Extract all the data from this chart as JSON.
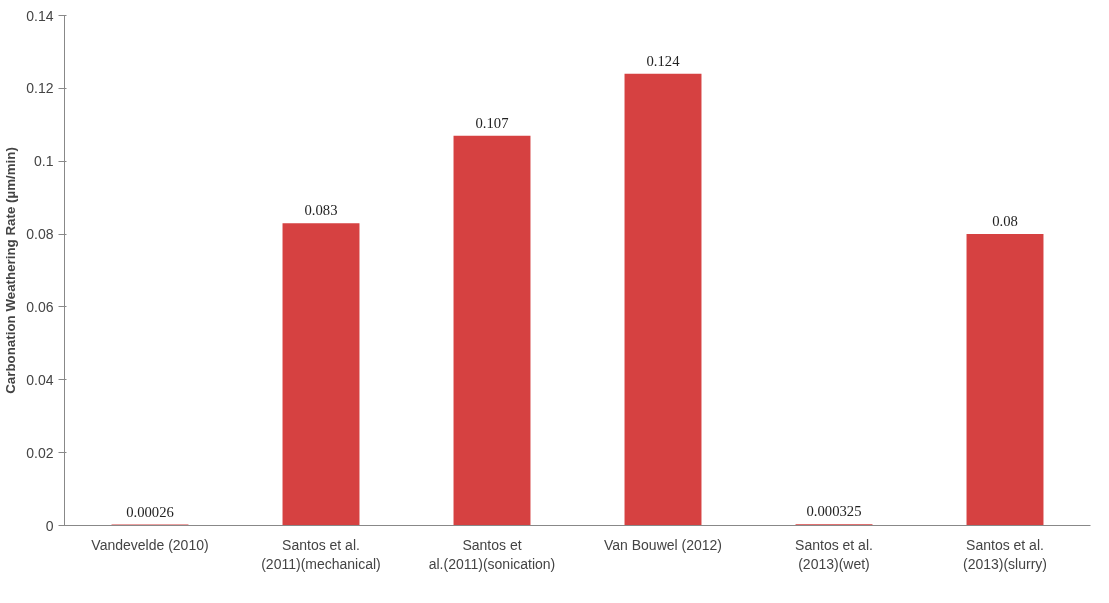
{
  "chart_data": {
    "type": "bar",
    "ylabel": "Carbonation Weathering Rate (µm/min)",
    "categories": [
      "Vandevelde (2010)",
      "Santos et al.\n(2011)(mechanical)",
      "Santos et\nal.(2011)(sonication)",
      "Van Bouwel (2012)",
      "Santos et al.\n(2013)(wet)",
      "Santos et al.\n(2013)(slurry)"
    ],
    "values": [
      0.00026,
      0.083,
      0.107,
      0.124,
      0.000325,
      0.08
    ],
    "color": "#d64141",
    "ylim": [
      0,
      0.14
    ],
    "yticks": [
      0,
      0.02,
      0.04,
      0.06,
      0.08,
      0.1,
      0.12,
      0.14
    ],
    "grid": false,
    "data_labels": true
  }
}
